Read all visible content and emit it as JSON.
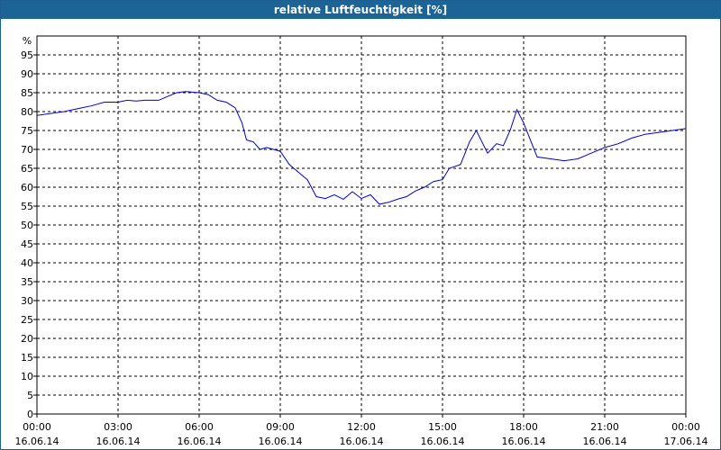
{
  "chart_data": {
    "type": "line",
    "title": "relative Luftfeuchtigkeit [%]",
    "ylabel": "%",
    "ylim": [
      0,
      100
    ],
    "yticks": [
      0,
      5,
      10,
      15,
      20,
      25,
      30,
      35,
      40,
      45,
      50,
      55,
      60,
      65,
      70,
      75,
      80,
      85,
      90,
      95
    ],
    "xlim_hours": [
      0,
      24
    ],
    "xticks": [
      {
        "time": "00:00",
        "date": "16.06.14"
      },
      {
        "time": "03:00",
        "date": "16.06.14"
      },
      {
        "time": "06:00",
        "date": "16.06.14"
      },
      {
        "time": "09:00",
        "date": "16.06.14"
      },
      {
        "time": "12:00",
        "date": "16.06.14"
      },
      {
        "time": "15:00",
        "date": "16.06.14"
      },
      {
        "time": "18:00",
        "date": "16.06.14"
      },
      {
        "time": "21:00",
        "date": "16.06.14"
      },
      {
        "time": "00:00",
        "date": "17.06.14"
      }
    ],
    "grid": true,
    "series": [
      {
        "color": "#0000cc",
        "points": [
          [
            "16.06.14 00:00",
            79
          ],
          [
            "16.06.14 00:30",
            79.5
          ],
          [
            "16.06.14 01:00",
            80
          ],
          [
            "16.06.14 01:20",
            80.5
          ],
          [
            "16.06.14 01:40",
            81
          ],
          [
            "16.06.14 02:00",
            81.5
          ],
          [
            "16.06.14 02:30",
            82.5
          ],
          [
            "16.06.14 03:00",
            82.5
          ],
          [
            "16.06.14 03:20",
            83
          ],
          [
            "16.06.14 03:40",
            82.8
          ],
          [
            "16.06.14 04:00",
            83
          ],
          [
            "16.06.14 04:30",
            83
          ],
          [
            "16.06.14 04:50",
            84
          ],
          [
            "16.06.14 05:10",
            85
          ],
          [
            "16.06.14 05:30",
            85.3
          ],
          [
            "16.06.14 06:00",
            85
          ],
          [
            "16.06.14 06:20",
            84.5
          ],
          [
            "16.06.14 06:40",
            83
          ],
          [
            "16.06.14 07:00",
            82.5
          ],
          [
            "16.06.14 07:20",
            81
          ],
          [
            "16.06.14 07:35",
            77
          ],
          [
            "16.06.14 07:45",
            72.5
          ],
          [
            "16.06.14 08:00",
            72
          ],
          [
            "16.06.14 08:15",
            70
          ],
          [
            "16.06.14 08:30",
            70.5
          ],
          [
            "16.06.14 09:00",
            69.5
          ],
          [
            "16.06.14 09:20",
            66
          ],
          [
            "16.06.14 09:40",
            64
          ],
          [
            "16.06.14 10:00",
            62
          ],
          [
            "16.06.14 10:20",
            57.5
          ],
          [
            "16.06.14 10:40",
            57
          ],
          [
            "16.06.14 11:00",
            58
          ],
          [
            "16.06.14 11:20",
            56.8
          ],
          [
            "16.06.14 11:40",
            58.8
          ],
          [
            "16.06.14 12:00",
            57
          ],
          [
            "16.06.14 12:20",
            58
          ],
          [
            "16.06.14 12:40",
            55.5
          ],
          [
            "16.06.14 13:00",
            56
          ],
          [
            "16.06.14 13:20",
            56.8
          ],
          [
            "16.06.14 13:40",
            57.5
          ],
          [
            "16.06.14 14:00",
            59
          ],
          [
            "16.06.14 14:20",
            60
          ],
          [
            "16.06.14 14:40",
            61.5
          ],
          [
            "16.06.14 15:00",
            62
          ],
          [
            "16.06.14 15:15",
            65
          ],
          [
            "16.06.14 15:40",
            66
          ],
          [
            "16.06.14 16:00",
            72
          ],
          [
            "16.06.14 16:15",
            75
          ],
          [
            "16.06.14 16:40",
            69
          ],
          [
            "16.06.14 17:00",
            71.5
          ],
          [
            "16.06.14 17:15",
            71
          ],
          [
            "16.06.14 17:30",
            75
          ],
          [
            "16.06.14 17:45",
            80.5
          ],
          [
            "16.06.14 18:00",
            77
          ],
          [
            "16.06.14 18:30",
            68
          ],
          [
            "16.06.14 19:00",
            67.5
          ],
          [
            "16.06.14 19:30",
            67
          ],
          [
            "16.06.14 20:00",
            67.5
          ],
          [
            "16.06.14 20:30",
            69
          ],
          [
            "16.06.14 21:00",
            70.5
          ],
          [
            "16.06.14 21:30",
            71.5
          ],
          [
            "16.06.14 22:00",
            73
          ],
          [
            "16.06.14 22:30",
            74
          ],
          [
            "16.06.14 23:00",
            74.5
          ],
          [
            "16.06.14 23:30",
            75
          ],
          [
            "17.06.14 00:00",
            75.5
          ]
        ]
      }
    ]
  }
}
